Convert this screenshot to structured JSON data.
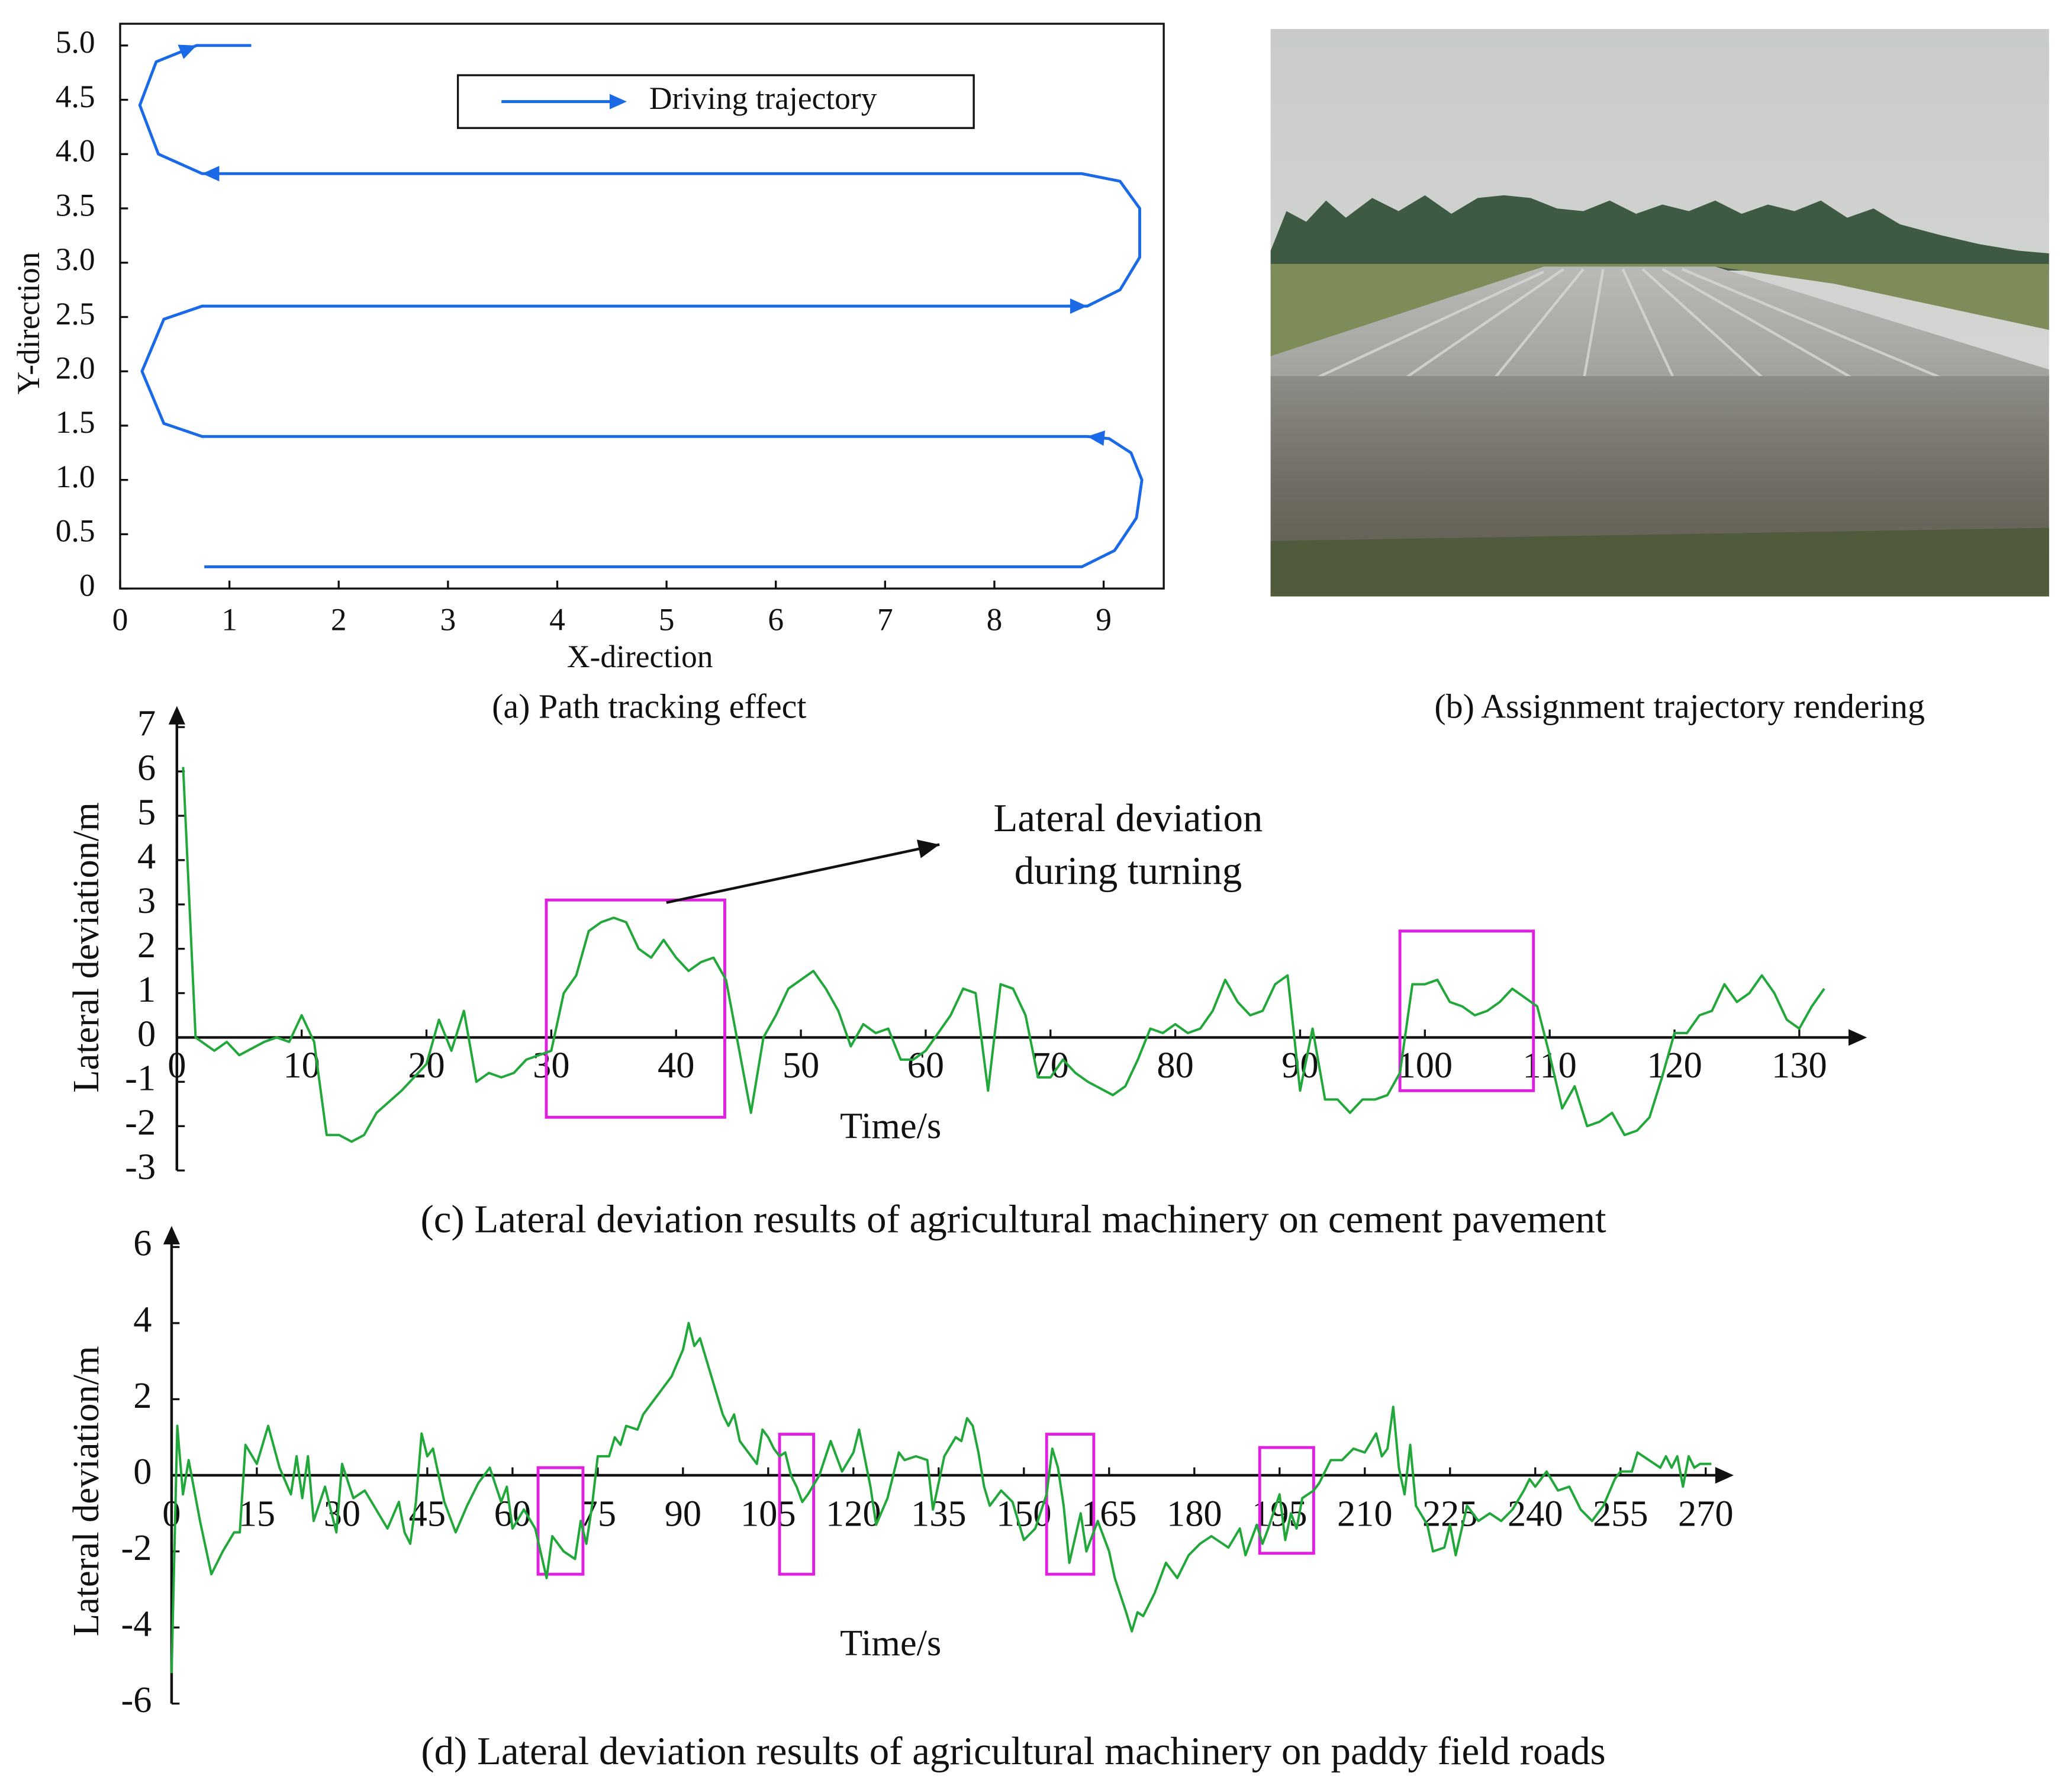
{
  "chart_data": [
    {
      "type": "line",
      "title": "(a) Path tracking effect",
      "xlabel": "X-direction",
      "ylabel": "Y-direction",
      "x": [
        0.77,
        8.8,
        9.1,
        9.3,
        9.35,
        9.25,
        9.05,
        8.85,
        0.75,
        0.4,
        0.2,
        0.4,
        0.75,
        8.85,
        9.15,
        9.33,
        9.33,
        9.15,
        8.8,
        0.75,
        0.35,
        0.18,
        0.33,
        0.7,
        1.2
      ],
      "series": [
        {
          "name": "Driving trajectory",
          "color": "#1a6ae8",
          "values": [
            0.2,
            0.2,
            0.35,
            0.65,
            1.0,
            1.25,
            1.38,
            1.4,
            1.4,
            1.52,
            2.0,
            2.48,
            2.6,
            2.6,
            2.75,
            3.05,
            3.5,
            3.75,
            3.82,
            3.82,
            4.0,
            4.45,
            4.85,
            5.0,
            5.0
          ]
        }
      ],
      "xlim": [
        0,
        9.55
      ],
      "ylim": [
        0,
        5.2
      ],
      "xticks": [
        0,
        1,
        2,
        3,
        4,
        5,
        6,
        7,
        8,
        9
      ],
      "yticks": [
        0,
        0.5,
        {
          "value": 1,
          "label": "1.0"
        },
        1.5,
        {
          "value": 2,
          "label": "2.0"
        },
        2.5,
        {
          "value": 3,
          "label": "3.0"
        },
        3.5,
        {
          "value": 4,
          "label": "4.0"
        },
        4.5,
        {
          "value": 5,
          "label": "5.0"
        }
      ],
      "grid": false,
      "legend": "upper center"
    },
    {
      "type": "line",
      "title": "(c) Lateral deviation results of agricultural machinery on cement pavement",
      "xlabel": "Time/s",
      "ylabel": "Lateral deviation/m",
      "annotation": [
        "Lateral deviation",
        "during turning"
      ],
      "x": [
        0.5,
        1.5,
        3,
        4,
        5,
        7,
        8,
        9,
        10,
        11,
        12,
        13,
        14,
        15,
        16,
        18,
        20,
        21,
        22,
        23,
        24,
        25,
        26,
        27,
        28,
        30,
        31,
        32,
        33,
        34,
        35,
        36,
        37,
        38,
        39,
        40,
        41,
        42,
        43,
        44,
        45,
        46,
        47,
        48,
        49,
        51,
        52,
        53,
        54,
        55,
        56,
        57,
        58,
        59,
        60,
        62,
        63,
        64,
        65,
        66,
        67,
        68,
        69,
        70,
        71,
        72,
        73,
        75,
        76,
        77,
        78,
        79,
        80,
        81,
        82,
        83,
        84,
        85,
        86,
        87,
        88,
        89,
        90,
        91,
        92,
        93,
        94,
        95,
        96,
        97,
        98,
        99,
        100,
        101,
        102,
        103,
        104,
        105,
        106,
        107,
        108,
        109,
        110,
        111,
        112,
        113,
        114,
        115,
        116,
        117,
        118,
        119,
        120,
        121,
        122,
        123,
        124,
        125,
        126,
        127,
        128,
        129,
        130,
        131,
        132
      ],
      "series": [
        {
          "name": "Lateral deviation",
          "color": "#22a83a",
          "values": [
            6.1,
            0,
            -0.3,
            -0.1,
            -0.4,
            -0.1,
            0,
            -0.1,
            0.5,
            -0.1,
            -2.2,
            -2.2,
            -2.35,
            -2.2,
            -1.7,
            -1.2,
            -0.6,
            0.4,
            -0.3,
            0.6,
            -1.0,
            -0.8,
            -0.9,
            -0.8,
            -0.5,
            -0.3,
            1.0,
            1.4,
            2.4,
            2.6,
            2.7,
            2.6,
            2.0,
            1.8,
            2.2,
            1.8,
            1.5,
            1.7,
            1.8,
            1.3,
            -0.2,
            -1.7,
            0,
            0.5,
            1.1,
            1.5,
            1.1,
            0.6,
            -0.2,
            0.3,
            0.1,
            0.2,
            -0.5,
            -0.5,
            -0.3,
            0.5,
            1.1,
            1.0,
            -1.2,
            1.2,
            1.1,
            0.5,
            -0.9,
            -0.9,
            -0.5,
            -0.8,
            -1.0,
            -1.3,
            -1.1,
            -0.5,
            0.2,
            0.1,
            0.3,
            0.1,
            0.2,
            0.6,
            1.3,
            0.8,
            0.5,
            0.6,
            1.2,
            1.4,
            -1.2,
            0.2,
            -1.4,
            -1.4,
            -1.7,
            -1.4,
            -1.4,
            -1.3,
            -0.8,
            1.2,
            1.2,
            1.3,
            0.8,
            0.7,
            0.5,
            0.6,
            0.8,
            1.1,
            0.9,
            0.7,
            -0.4,
            -1.6,
            -1.1,
            -2.0,
            -1.9,
            -1.7,
            -2.2,
            -2.1,
            -1.8,
            -0.9,
            0.1,
            0.1,
            0.5,
            0.6,
            1.2,
            0.8,
            1.0,
            1.4,
            1.0,
            0.4,
            0.2,
            0.7,
            1.1
          ]
        }
      ],
      "highlights": [
        {
          "x": [
            29.6,
            43.9
          ],
          "y": [
            -1.8,
            3.1
          ]
        },
        {
          "x": [
            98,
            108.7
          ],
          "y": [
            -1.2,
            2.4
          ]
        }
      ],
      "highlight_color": "#e020e0",
      "xlim": [
        0,
        135
      ],
      "ylim": [
        -3,
        7
      ],
      "xticks": [
        0,
        10,
        20,
        30,
        40,
        50,
        60,
        70,
        80,
        90,
        100,
        110,
        120,
        130
      ],
      "yticks": [
        -3,
        -2,
        -1,
        0,
        1,
        2,
        3,
        4,
        5,
        6,
        7
      ],
      "grid": false
    },
    {
      "type": "line",
      "title": "(d) Lateral deviation results of agricultural machinery on paddy field roads",
      "xlabel": "Time/s",
      "ylabel": "Lateral deviation/m",
      "x": [
        0,
        1,
        2,
        3,
        5,
        7,
        9,
        11,
        12,
        13,
        15,
        17,
        19,
        21,
        22,
        23,
        24,
        25,
        27,
        29,
        30,
        32,
        34,
        36,
        38,
        40,
        41,
        42,
        43,
        44,
        45,
        46,
        48,
        50,
        52,
        54,
        56,
        58,
        59,
        60,
        62,
        64,
        66,
        67,
        69,
        71,
        72,
        73,
        74,
        75,
        77,
        78,
        79,
        80,
        82,
        83,
        85,
        87,
        88,
        90,
        91,
        92,
        93,
        95,
        97,
        98,
        99,
        100,
        102,
        103,
        104,
        105,
        106,
        107,
        108,
        109,
        110,
        111,
        112,
        114,
        116,
        117,
        118,
        120,
        121,
        123,
        124,
        126,
        128,
        129,
        131,
        133,
        134,
        136,
        138,
        139,
        140,
        141,
        142,
        143,
        144,
        146,
        148,
        150,
        152,
        154,
        155,
        156,
        157,
        158,
        160,
        161,
        163,
        165,
        166,
        168,
        169,
        170,
        171,
        173,
        175,
        177,
        179,
        181,
        183,
        186,
        188,
        189,
        191,
        192,
        193,
        195,
        196,
        197,
        198,
        199,
        200,
        201,
        202,
        204,
        206,
        208,
        210,
        212,
        213,
        214,
        215,
        216,
        217,
        218,
        219,
        221,
        222,
        224,
        225,
        226,
        228,
        230,
        232,
        234,
        236,
        238,
        239,
        240,
        242,
        244,
        246,
        248,
        250,
        252,
        254,
        255,
        257,
        258,
        260,
        262,
        263,
        264,
        265,
        266,
        267,
        268,
        269,
        271
      ],
      "series": [
        {
          "name": "Lateral deviation",
          "color": "#22a83a",
          "values": [
            -5.2,
            1.3,
            -0.5,
            0.4,
            -1.2,
            -2.6,
            -2.0,
            -1.5,
            -1.5,
            0.8,
            0.3,
            1.3,
            0.2,
            -0.5,
            0.5,
            -0.6,
            0.5,
            -1.2,
            -0.3,
            -1.5,
            0.3,
            -0.6,
            -0.4,
            -0.9,
            -1.4,
            -0.7,
            -1.5,
            -1.8,
            -0.7,
            1.1,
            0.5,
            0.7,
            -0.7,
            -1.5,
            -0.8,
            -0.2,
            0.2,
            -0.7,
            -0.3,
            -1.4,
            -0.9,
            -1.4,
            -2.7,
            -1.6,
            -2.0,
            -2.2,
            -1.2,
            -1.8,
            -0.8,
            0.5,
            0.5,
            1.0,
            0.8,
            1.3,
            1.2,
            1.6,
            2.0,
            2.4,
            2.6,
            3.3,
            4.0,
            3.4,
            3.6,
            2.6,
            1.6,
            1.3,
            1.6,
            0.9,
            0.5,
            0.3,
            1.2,
            1.0,
            0.7,
            0.5,
            0.6,
            0.0,
            -0.3,
            -0.7,
            -0.5,
            0.0,
            0.9,
            0.5,
            0.1,
            0.6,
            1.2,
            -0.3,
            -1.3,
            -0.6,
            0.6,
            0.4,
            0.5,
            0.4,
            -0.9,
            0.5,
            1.0,
            0.9,
            1.5,
            1.3,
            0.6,
            -0.3,
            -0.8,
            -0.4,
            -0.7,
            -1.7,
            -1.4,
            -0.5,
            0.7,
            0.2,
            -0.8,
            -2.3,
            -1.0,
            -2.0,
            -1.2,
            -2.0,
            -2.7,
            -3.6,
            -4.1,
            -3.6,
            -3.7,
            -3.1,
            -2.3,
            -2.7,
            -2.1,
            -1.8,
            -1.6,
            -1.9,
            -1.4,
            -2.1,
            -1.3,
            -1.8,
            -1.4,
            -0.5,
            -1.7,
            -1.0,
            -1.4,
            -0.6,
            -0.5,
            -0.4,
            -0.2,
            0.4,
            0.4,
            0.7,
            0.6,
            1.1,
            0.5,
            0.7,
            1.8,
            0.2,
            -0.5,
            0.8,
            -0.8,
            -1.3,
            -2.0,
            -1.9,
            -1.3,
            -2.1,
            -0.8,
            -1.2,
            -1.0,
            -1.2,
            -0.9,
            -0.4,
            -0.1,
            -0.3,
            0.1,
            -0.4,
            -0.3,
            -0.9,
            -1.2,
            -0.8,
            -0.1,
            0.1,
            0.1,
            0.6,
            0.4,
            0.2,
            0.5,
            0.2,
            0.5,
            -0.3,
            0.5,
            0.2,
            0.3,
            0.3
          ]
        }
      ],
      "highlights": [
        {
          "x": [
            64.5,
            72.4
          ],
          "y": [
            -2.6,
            0.2
          ]
        },
        {
          "x": [
            107,
            113
          ],
          "y": [
            -2.6,
            1.08
          ]
        },
        {
          "x": [
            154,
            162.3
          ],
          "y": [
            -2.6,
            1.08
          ]
        },
        {
          "x": [
            191.5,
            201
          ],
          "y": [
            -2.05,
            0.73
          ]
        }
      ],
      "highlight_color": "#e020e0",
      "xlim": [
        0,
        274
      ],
      "ylim": [
        -6,
        6
      ],
      "xticks": [
        0,
        15,
        30,
        45,
        60,
        75,
        90,
        105,
        120,
        135,
        150,
        165,
        180,
        195,
        210,
        225,
        240,
        255,
        270
      ],
      "yticks": [
        -6,
        -4,
        -2,
        0,
        2,
        4,
        6
      ],
      "grid": false
    }
  ],
  "photo": {
    "caption": "(b) Assignment trajectory rendering"
  }
}
